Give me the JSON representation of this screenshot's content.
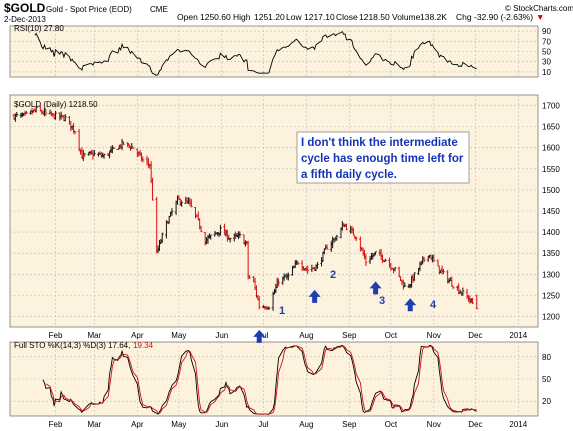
{
  "header": {
    "symbol": "$GOLD",
    "name": "Gold - Spot Price (EOD)",
    "exchange": "CME",
    "date": "2-Dec-2013",
    "open_label": "Open",
    "open": "1250.60",
    "high_label": "High",
    "high": "1251.20",
    "low_label": "Low",
    "low": "1217.10",
    "close_label": "Close",
    "close": "1218.50",
    "volume_label": "Volume",
    "volume": "138.2K",
    "chg_label": "Chg",
    "chg": "-32.90 (-2.63%)",
    "chg_arrow": "▼",
    "watermark": "© StockCharts.com"
  },
  "colors": {
    "panel_bg": "#fdf2de",
    "grid": "#bdbdbd",
    "bar_up": "#111111",
    "bar_down": "#d01010",
    "annotation_text": "#1533b8",
    "arrow": "#1f3fb0",
    "rsi_line": "#000000",
    "sto_k": "#000000",
    "sto_d": "#d01010"
  },
  "rsi_panel": {
    "label": "RSI(10) 27.80",
    "ylim": [
      0,
      100
    ],
    "y_ticks": [
      "90",
      "70",
      "50",
      "30",
      "10"
    ]
  },
  "price_panel": {
    "label": "$GOLD (Daily) 1218.50",
    "ylim": [
      1175,
      1725
    ],
    "y_ticks": [
      "1700",
      "1650",
      "1600",
      "1550",
      "1500",
      "1450",
      "1400",
      "1350",
      "1300",
      "1250",
      "1200"
    ],
    "x_ticks": [
      "Feb",
      "Mar",
      "Apr",
      "May",
      "Jun",
      "Jul",
      "Aug",
      "Sep",
      "Oct",
      "Nov",
      "Dec",
      "2014"
    ],
    "annotation": [
      "I don't think the intermediate",
      "cycle has enough time left for",
      "a fifth daily cycle."
    ],
    "cycle_labels": [
      "1",
      "2",
      "3",
      "4"
    ]
  },
  "sto_panel": {
    "label_main": "Full STO %K(14,3) %D(3) 17.64,",
    "label_d": "19.34",
    "ylim": [
      0,
      100
    ],
    "y_ticks": [
      "80",
      "50",
      "20"
    ],
    "x_ticks": [
      "Feb",
      "Mar",
      "Apr",
      "May",
      "Jun",
      "Jul",
      "Aug",
      "Sep",
      "Oct",
      "Nov",
      "Dec",
      "2014"
    ]
  },
  "chart_data": {
    "type": "line",
    "title": "$GOLD Gold - Spot Price (EOD) CME",
    "xlabel": "",
    "ylabel": "",
    "x": [
      "2013-01-02",
      "2013-01-10",
      "2013-01-18",
      "2013-01-25",
      "2013-02-01",
      "2013-02-08",
      "2013-02-15",
      "2013-02-20",
      "2013-02-28",
      "2013-03-08",
      "2013-03-15",
      "2013-03-22",
      "2013-03-29",
      "2013-04-05",
      "2013-04-10",
      "2013-04-12",
      "2013-04-15",
      "2013-04-22",
      "2013-04-30",
      "2013-05-08",
      "2013-05-15",
      "2013-05-20",
      "2013-05-31",
      "2013-06-07",
      "2013-06-14",
      "2013-06-19",
      "2013-06-20",
      "2013-06-24",
      "2013-06-28",
      "2013-07-05",
      "2013-07-12",
      "2013-07-19",
      "2013-07-26",
      "2013-08-02",
      "2013-08-09",
      "2013-08-16",
      "2013-08-23",
      "2013-08-28",
      "2013-09-06",
      "2013-09-13",
      "2013-09-20",
      "2013-09-27",
      "2013-10-04",
      "2013-10-11",
      "2013-10-15",
      "2013-10-22",
      "2013-10-28",
      "2013-11-04",
      "2013-11-12",
      "2013-11-20",
      "2013-11-27",
      "2013-12-02"
    ],
    "series": [
      {
        "values": [
          1675,
          1675,
          1690,
          1680,
          1675,
          1670,
          1640,
          1580,
          1585,
          1580,
          1595,
          1610,
          1600,
          1570,
          1560,
          1480,
          1350,
          1420,
          1475,
          1470,
          1425,
          1380,
          1405,
          1385,
          1390,
          1370,
          1295,
          1280,
          1225,
          1225,
          1285,
          1295,
          1330,
          1310,
          1320,
          1365,
          1390,
          1418,
          1390,
          1330,
          1350,
          1335,
          1310,
          1270,
          1280,
          1320,
          1350,
          1315,
          1285,
          1260,
          1240,
          1218
        ]
      }
    ],
    "cycle_lows": [
      {
        "label": "1",
        "date": "2013-06-28",
        "price": 1180
      },
      {
        "label": "2",
        "date": "2013-08-07",
        "price": 1275
      },
      {
        "label": "3",
        "date": "2013-09-20",
        "price": 1295
      },
      {
        "label": "4",
        "date": "2013-10-15",
        "price": 1255
      }
    ],
    "ylim": [
      1175,
      1725
    ],
    "rsi_last": 27.8,
    "sto_k_last": 17.64,
    "sto_d_last": 19.34
  }
}
